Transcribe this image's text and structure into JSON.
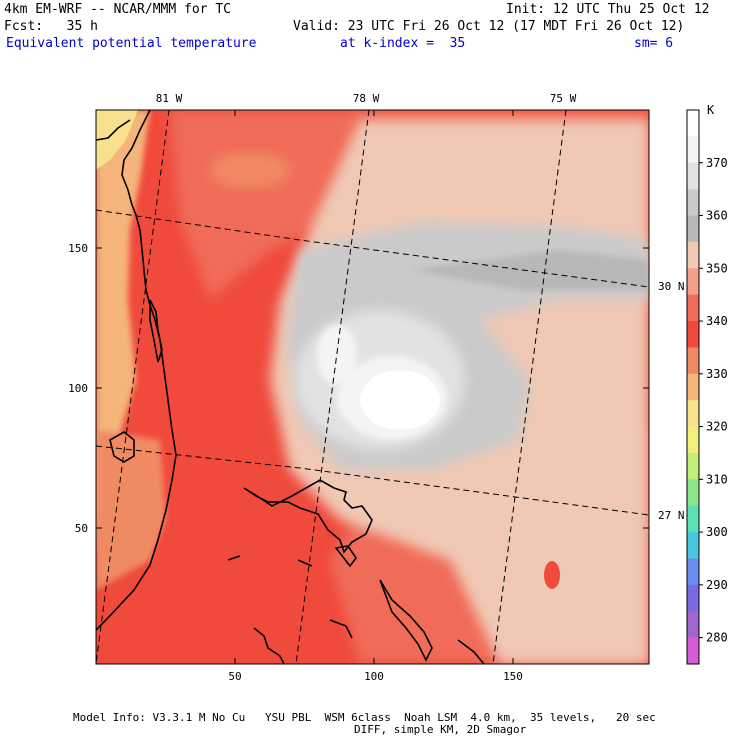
{
  "header": {
    "model_line": "4km EM-WRF -- NCAR/MMM for TC",
    "init_line": "Init: 12 UTC Thu 25 Oct 12",
    "fcst_line": "Fcst:   35 h",
    "valid_line": "Valid: 23 UTC Fri 26 Oct 12 (17 MDT Fri 26 Oct 12)",
    "field_name": "Equivalent potential temperature",
    "level_text": "at k-index =  35",
    "smoothing_text": "sm= 6"
  },
  "map": {
    "lon_labels": [
      "81 W",
      "78 W",
      "75 W"
    ],
    "lat_labels": [
      "30 N",
      "27 N"
    ],
    "x_ticks": [
      "50",
      "100",
      "150"
    ],
    "y_ticks": [
      "150",
      "100",
      "50"
    ],
    "x_range": [
      1,
      200
    ],
    "y_range": [
      1,
      200
    ]
  },
  "colorbar": {
    "unit": "K",
    "labels": [
      "280",
      "290",
      "300",
      "310",
      "320",
      "330",
      "340",
      "350",
      "360",
      "370"
    ],
    "colors": [
      "#ffffff",
      "#f4f4f4",
      "#e2e2e2",
      "#cacaca",
      "#b8b8b8",
      "#f0c8b4",
      "#f4a088",
      "#f06c58",
      "#f04a3c",
      "#f08a64",
      "#f4b47a",
      "#f8e08c",
      "#f0f07a",
      "#c4ec78",
      "#8ce488",
      "#5ce0b4",
      "#48c8e0",
      "#6a8cec",
      "#7a6ae0",
      "#a066cc",
      "#d65cd6"
    ]
  },
  "footer": {
    "line1": "Model Info: V3.3.1 M No Cu   YSU PBL  WSM 6class  Noah LSM  4.0 km,  35 levels,   20 sec",
    "line2": "DIFF, simple KM, 2D Smagor"
  }
}
